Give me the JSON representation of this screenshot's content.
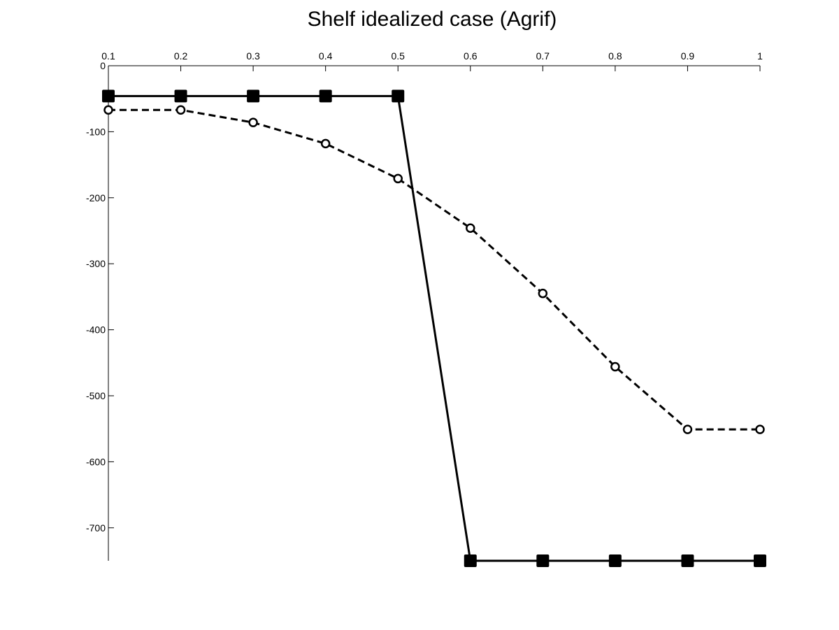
{
  "chart_data": {
    "type": "line",
    "title": "Shelf idealized case (Agrif)",
    "xlabel": "",
    "ylabel": "",
    "x_axis_location": "top",
    "xlim": [
      0.1,
      1
    ],
    "ylim": [
      -750,
      0
    ],
    "x_ticks": [
      "0.1",
      "0.2",
      "0.3",
      "0.4",
      "0.5",
      "0.6",
      "0.7",
      "0.8",
      "0.9",
      "1"
    ],
    "y_ticks": [
      "0",
      "-100",
      "-200",
      "-300",
      "-400",
      "-500",
      "-600",
      "-700"
    ],
    "grid": false,
    "legend": "none",
    "x": [
      0.1,
      0.2,
      0.3,
      0.4,
      0.5,
      0.6,
      0.7,
      0.8,
      0.9,
      1
    ],
    "series": [
      {
        "style": "solid",
        "marker": "filled-square",
        "color": "#000000",
        "values": [
          -46,
          -46,
          -46,
          -46,
          -46,
          -750,
          -750,
          -750,
          -750,
          -750
        ]
      },
      {
        "style": "dashed",
        "marker": "open-circle",
        "color": "#000000",
        "values": [
          -67,
          -67,
          -86,
          -118,
          -171,
          -246,
          -345,
          -456,
          -551,
          -551
        ]
      }
    ]
  }
}
